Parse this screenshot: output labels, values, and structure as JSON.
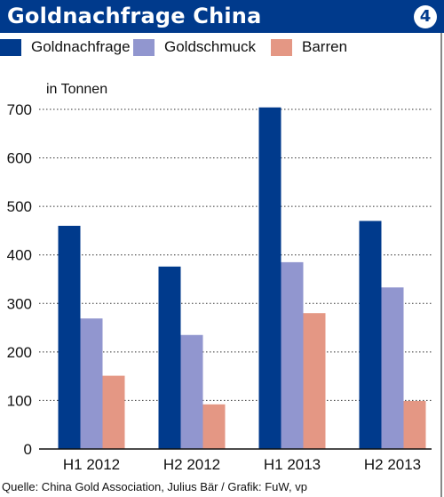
{
  "header": {
    "title": "Goldnachfrage China",
    "badge": "4"
  },
  "legend": [
    {
      "label": "Goldnachfrage",
      "color": "#003a8c"
    },
    {
      "label": "Goldschmuck",
      "color": "#9196cf"
    },
    {
      "label": "Barren",
      "color": "#e49784"
    }
  ],
  "chart_data": {
    "type": "bar",
    "ylabel": "in Tonnen",
    "categories": [
      "H1 2012",
      "H2 2012",
      "H1 2013",
      "H2 2013"
    ],
    "series": [
      {
        "name": "Goldnachfrage",
        "color": "#003a8c",
        "values": [
          460,
          376,
          704,
          470
        ]
      },
      {
        "name": "Goldschmuck",
        "color": "#9196cf",
        "values": [
          269,
          235,
          385,
          333
        ]
      },
      {
        "name": "Barren",
        "color": "#e49784",
        "values": [
          151,
          92,
          280,
          99
        ]
      }
    ],
    "ylim": [
      0,
      700
    ],
    "yticks": [
      0,
      100,
      200,
      300,
      400,
      500,
      600,
      700
    ],
    "grid": true
  },
  "footer": {
    "source": "Quelle: China Gold Association, Julius Bär / Grafik: FuW, vp"
  }
}
